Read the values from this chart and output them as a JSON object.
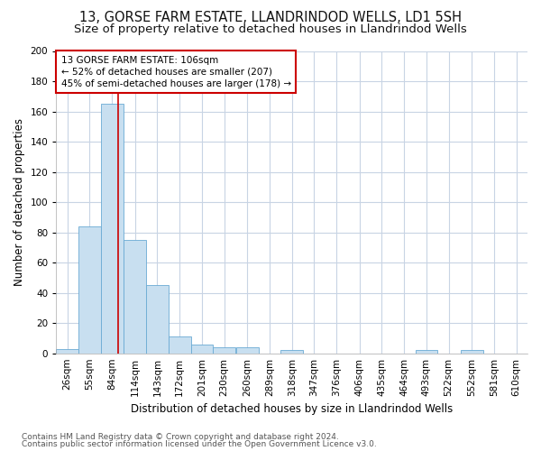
{
  "title": "13, GORSE FARM ESTATE, LLANDRINDOD WELLS, LD1 5SH",
  "subtitle": "Size of property relative to detached houses in Llandrindod Wells",
  "xlabel": "Distribution of detached houses by size in Llandrindod Wells",
  "ylabel": "Number of detached properties",
  "footnote1": "Contains HM Land Registry data © Crown copyright and database right 2024.",
  "footnote2": "Contains public sector information licensed under the Open Government Licence v3.0.",
  "bar_color": "#c8dff0",
  "bar_edge_color": "#6aaad4",
  "grid_color": "#c8d4e4",
  "annotation_box_color": "#cc0000",
  "annotation_line1": "13 GORSE FARM ESTATE: 106sqm",
  "annotation_line2": "← 52% of detached houses are smaller (207)",
  "annotation_line3": "45% of semi-detached houses are larger (178) →",
  "vline_color": "#cc0000",
  "vline_x": 106,
  "categories": [
    "26sqm",
    "55sqm",
    "84sqm",
    "114sqm",
    "143sqm",
    "172sqm",
    "201sqm",
    "230sqm",
    "260sqm",
    "289sqm",
    "318sqm",
    "347sqm",
    "376sqm",
    "406sqm",
    "435sqm",
    "464sqm",
    "493sqm",
    "522sqm",
    "552sqm",
    "581sqm",
    "610sqm"
  ],
  "bin_starts": [
    26,
    55,
    84,
    114,
    143,
    172,
    201,
    230,
    260,
    289,
    318,
    347,
    376,
    406,
    435,
    464,
    493,
    522,
    552,
    581,
    610
  ],
  "bin_width": 29,
  "values": [
    3,
    84,
    165,
    75,
    45,
    11,
    6,
    4,
    4,
    0,
    2,
    0,
    0,
    0,
    0,
    0,
    2,
    0,
    2,
    0,
    0
  ],
  "ylim": [
    0,
    200
  ],
  "yticks": [
    0,
    20,
    40,
    60,
    80,
    100,
    120,
    140,
    160,
    180,
    200
  ],
  "background_color": "#ffffff",
  "title_fontsize": 10.5,
  "subtitle_fontsize": 9.5,
  "axis_fontsize": 8.5,
  "tick_fontsize": 7.5,
  "footnote_fontsize": 6.5
}
